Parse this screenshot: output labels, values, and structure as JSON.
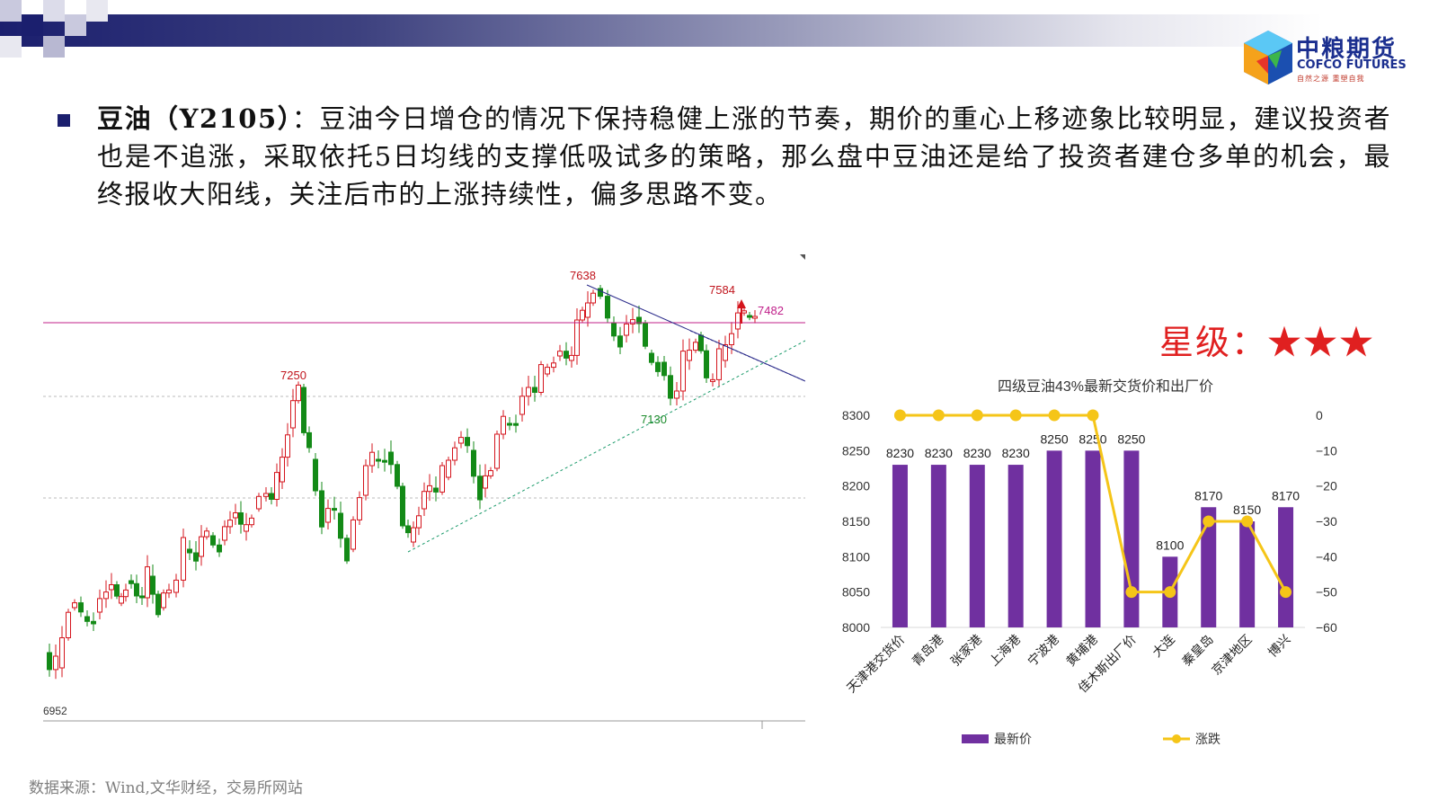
{
  "header": {
    "logo_cn": "中粮期货",
    "logo_en": "COFCO FUTURES",
    "logo_slogan": "自然之源 重塑自我"
  },
  "commentary": {
    "title": "豆油（Y2105）",
    "separator": "：",
    "body": "豆油今日增仓的情况下保持稳健上涨的节奏，期价的重心上移迹象比较明显，建议投资者也是不追涨，采取依托5日均线的支撑低吸试多的策略，那么盘中豆油还是给了投资者建仓多单的机会，最终报收大阳线，关注后市的上涨持续性，偏多思路不变。"
  },
  "rating": "星级：★★★",
  "source": "数据来源：Wind,文华财经，交易所网站",
  "colors": {
    "header_navy": "#1b1f6e",
    "bar_purple": "#7030a0",
    "line_yellow": "#f5c518",
    "kline_up": "#d4141c",
    "kline_down": "#138a17",
    "resistance": "#c0208a"
  },
  "chart_data": [
    {
      "type": "candlestick",
      "title": "",
      "annotations": {
        "high_1": "7250",
        "high_2": "7638",
        "recent_high": "7584",
        "low": "7130",
        "level_line": "7482",
        "start_label": "6952"
      }
    },
    {
      "type": "bar",
      "title": "四级豆油43%最新交货价和出厂价",
      "categories": [
        "天津港交货价",
        "青岛港",
        "张家港",
        "上海港",
        "宁波港",
        "黄埔港",
        "佳木斯出厂价",
        "大连",
        "秦皇岛",
        "京津地区",
        "博兴"
      ],
      "series": [
        {
          "name": "最新价",
          "type": "bar",
          "axis": "left",
          "values": [
            8230,
            8230,
            8230,
            8230,
            8250,
            8250,
            8250,
            8100,
            8170,
            8150,
            8170
          ]
        },
        {
          "name": "涨跌",
          "type": "line",
          "axis": "right",
          "values": [
            0,
            0,
            0,
            0,
            0,
            0,
            -50,
            -50,
            -30,
            -30,
            -50
          ]
        }
      ],
      "ylim_left": [
        8000,
        8300
      ],
      "yticks_left": [
        "8300",
        "8250",
        "8200",
        "8150",
        "8100",
        "8050",
        "8000"
      ],
      "ylim_right": [
        -60,
        0
      ],
      "yticks_right": [
        "0",
        "-10",
        "-20",
        "-30",
        "-40",
        "-50",
        "-60"
      ],
      "legend_position": "bottom"
    }
  ]
}
